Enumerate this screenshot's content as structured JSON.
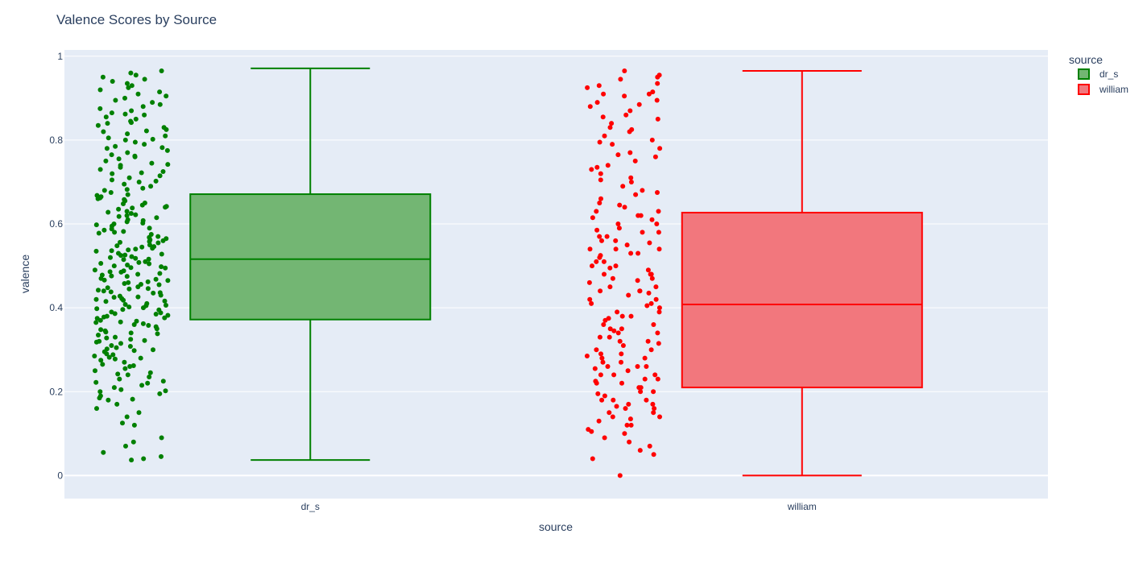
{
  "chart_data": {
    "type": "box",
    "title": "Valence Scores by Source",
    "xlabel": "source",
    "ylabel": "valence",
    "categories": [
      "dr_s",
      "william"
    ],
    "yticks": [
      "0",
      "0.2",
      "0.4",
      "0.6",
      "0.8",
      "1"
    ],
    "ylim": [
      -0.055,
      1.015
    ],
    "grid": true,
    "legend": {
      "title": "source",
      "position": "top-right"
    },
    "series": [
      {
        "name": "dr_s",
        "color": "#008000",
        "fill": "#73b673",
        "min": 0.037,
        "q1": 0.372,
        "median": 0.516,
        "q3": 0.671,
        "max": 0.971,
        "points": [
          0.96,
          0.955,
          0.95,
          0.94,
          0.935,
          0.93,
          0.92,
          0.915,
          0.91,
          0.9,
          0.895,
          0.89,
          0.88,
          0.875,
          0.87,
          0.865,
          0.86,
          0.855,
          0.85,
          0.845,
          0.84,
          0.835,
          0.83,
          0.825,
          0.82,
          0.815,
          0.81,
          0.805,
          0.8,
          0.795,
          0.79,
          0.785,
          0.78,
          0.775,
          0.77,
          0.765,
          0.76,
          0.755,
          0.75,
          0.745,
          0.74,
          0.735,
          0.73,
          0.725,
          0.72,
          0.715,
          0.71,
          0.705,
          0.7,
          0.695,
          0.69,
          0.685,
          0.68,
          0.675,
          0.67,
          0.665,
          0.66,
          0.655,
          0.65,
          0.645,
          0.64,
          0.635,
          0.63,
          0.625,
          0.62,
          0.615,
          0.61,
          0.605,
          0.6,
          0.595,
          0.59,
          0.585,
          0.58,
          0.575,
          0.57,
          0.565,
          0.56,
          0.555,
          0.55,
          0.545,
          0.54,
          0.535,
          0.53,
          0.525,
          0.52,
          0.515,
          0.51,
          0.505,
          0.5,
          0.495,
          0.49,
          0.485,
          0.48,
          0.475,
          0.47,
          0.465,
          0.46,
          0.455,
          0.45,
          0.445,
          0.44,
          0.435,
          0.43,
          0.425,
          0.42,
          0.415,
          0.41,
          0.405,
          0.4,
          0.395,
          0.39,
          0.385,
          0.38,
          0.375,
          0.37,
          0.365,
          0.36,
          0.355,
          0.35,
          0.345,
          0.34,
          0.335,
          0.33,
          0.325,
          0.32,
          0.315,
          0.31,
          0.305,
          0.3,
          0.295,
          0.29,
          0.285,
          0.28,
          0.275,
          0.27,
          0.265,
          0.26,
          0.255,
          0.25,
          0.245,
          0.24,
          0.235,
          0.23,
          0.225,
          0.22,
          0.215,
          0.21,
          0.205,
          0.2,
          0.195,
          0.19,
          0.185,
          0.18,
          0.17,
          0.16,
          0.15,
          0.14,
          0.125,
          0.12,
          0.09,
          0.08,
          0.07,
          0.055,
          0.045,
          0.04,
          0.037,
          0.965,
          0.945,
          0.925,
          0.905,
          0.885,
          0.862,
          0.842,
          0.822,
          0.802,
          0.782,
          0.762,
          0.742,
          0.722,
          0.702,
          0.682,
          0.662,
          0.642,
          0.622,
          0.602,
          0.582,
          0.562,
          0.542,
          0.522,
          0.502,
          0.482,
          0.462,
          0.442,
          0.422,
          0.402,
          0.382,
          0.362,
          0.342,
          0.322,
          0.302,
          0.282,
          0.262,
          0.242,
          0.222,
          0.202,
          0.182,
          0.668,
          0.648,
          0.628,
          0.608,
          0.588,
          0.568,
          0.548,
          0.528,
          0.508,
          0.488,
          0.468,
          0.448,
          0.428,
          0.408,
          0.388,
          0.368,
          0.348,
          0.328,
          0.308,
          0.288,
          0.658,
          0.638,
          0.618,
          0.598,
          0.578,
          0.558,
          0.538,
          0.518,
          0.498,
          0.478,
          0.458,
          0.438,
          0.418,
          0.398,
          0.378,
          0.358,
          0.338,
          0.318,
          0.298,
          0.278,
          0.556,
          0.536,
          0.516,
          0.496,
          0.476,
          0.456,
          0.436,
          0.416,
          0.396,
          0.376,
          0.546,
          0.526,
          0.506,
          0.486,
          0.466,
          0.446,
          0.426,
          0.406,
          0.386,
          0.366
        ]
      },
      {
        "name": "william",
        "color": "#ff0000",
        "fill": "#f2777d",
        "min": 0.0,
        "q1": 0.21,
        "median": 0.408,
        "q3": 0.627,
        "max": 0.965,
        "points": [
          0.965,
          0.955,
          0.945,
          0.935,
          0.925,
          0.915,
          0.905,
          0.895,
          0.885,
          0.87,
          0.855,
          0.84,
          0.825,
          0.81,
          0.795,
          0.78,
          0.765,
          0.75,
          0.735,
          0.72,
          0.705,
          0.69,
          0.675,
          0.66,
          0.645,
          0.63,
          0.615,
          0.6,
          0.585,
          0.57,
          0.555,
          0.54,
          0.525,
          0.51,
          0.495,
          0.48,
          0.465,
          0.45,
          0.435,
          0.42,
          0.405,
          0.39,
          0.375,
          0.36,
          0.345,
          0.33,
          0.315,
          0.3,
          0.285,
          0.27,
          0.255,
          0.24,
          0.225,
          0.21,
          0.195,
          0.18,
          0.165,
          0.15,
          0.135,
          0.12,
          0.105,
          0.09,
          0.08,
          0.07,
          0.06,
          0.05,
          0.04,
          0.0,
          0.95,
          0.93,
          0.91,
          0.89,
          0.86,
          0.83,
          0.8,
          0.77,
          0.74,
          0.71,
          0.68,
          0.65,
          0.62,
          0.59,
          0.56,
          0.53,
          0.5,
          0.47,
          0.44,
          0.41,
          0.38,
          0.35,
          0.32,
          0.29,
          0.26,
          0.23,
          0.2,
          0.17,
          0.14,
          0.11,
          0.62,
          0.6,
          0.58,
          0.56,
          0.54,
          0.52,
          0.5,
          0.48,
          0.46,
          0.44,
          0.42,
          0.4,
          0.38,
          0.36,
          0.34,
          0.32,
          0.3,
          0.28,
          0.26,
          0.24,
          0.22,
          0.2,
          0.18,
          0.16,
          0.14,
          0.12,
          0.1,
          0.61,
          0.57,
          0.53,
          0.49,
          0.45,
          0.41,
          0.37,
          0.33,
          0.29,
          0.25,
          0.21,
          0.17,
          0.13,
          0.55,
          0.43,
          0.31,
          0.19,
          0.15,
          0.23,
          0.27,
          0.35,
          0.39,
          0.47,
          0.51,
          0.63,
          0.67,
          0.73,
          0.79,
          0.85,
          0.91,
          0.16,
          0.18,
          0.22,
          0.24,
          0.26,
          0.28,
          0.34,
          0.44,
          0.48,
          0.54,
          0.58,
          0.64,
          0.7,
          0.76,
          0.82,
          0.88
        ]
      }
    ]
  }
}
